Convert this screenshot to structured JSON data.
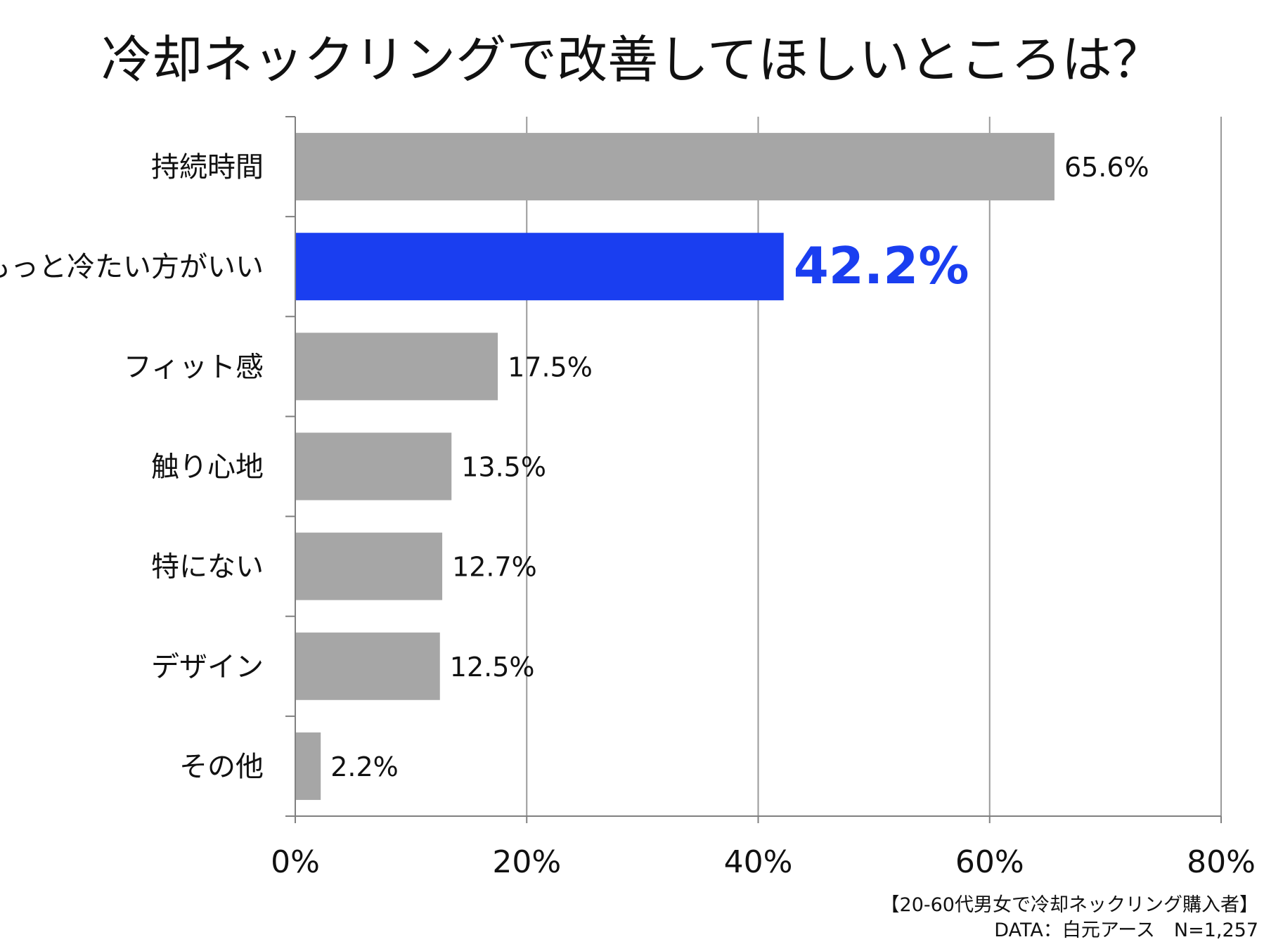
{
  "chart_data": {
    "type": "bar",
    "orientation": "horizontal",
    "title": "冷却ネックリングで改善してほしいところは？",
    "categories": [
      "持続時間",
      "もっと冷たい方がいい",
      "フィット感",
      "触り心地",
      "特にない",
      "デザイン",
      "その他"
    ],
    "values": [
      65.6,
      42.2,
      17.5,
      13.5,
      12.7,
      12.5,
      2.2
    ],
    "value_labels": [
      "65.6%",
      "42.2%",
      "17.5%",
      "13.5%",
      "12.7%",
      "12.5%",
      "2.2%"
    ],
    "highlight_index": 1,
    "xlim": [
      0,
      80
    ],
    "xticks": [
      0,
      20,
      40,
      60,
      80
    ],
    "xtick_labels": [
      "0%",
      "20%",
      "40%",
      "60%",
      "80%"
    ],
    "xlabel": "",
    "ylabel": "",
    "grid": "vertical",
    "legend": "none"
  },
  "colors": {
    "bar": "#a6a6a6",
    "highlight": "#1a3ef0",
    "grid": "#9a9a9a",
    "axis": "#808080"
  },
  "footnote": {
    "line1": "【20-60代男女で冷却ネックリング購入者】",
    "line2": "DATA：白元アース　N=1,257"
  }
}
